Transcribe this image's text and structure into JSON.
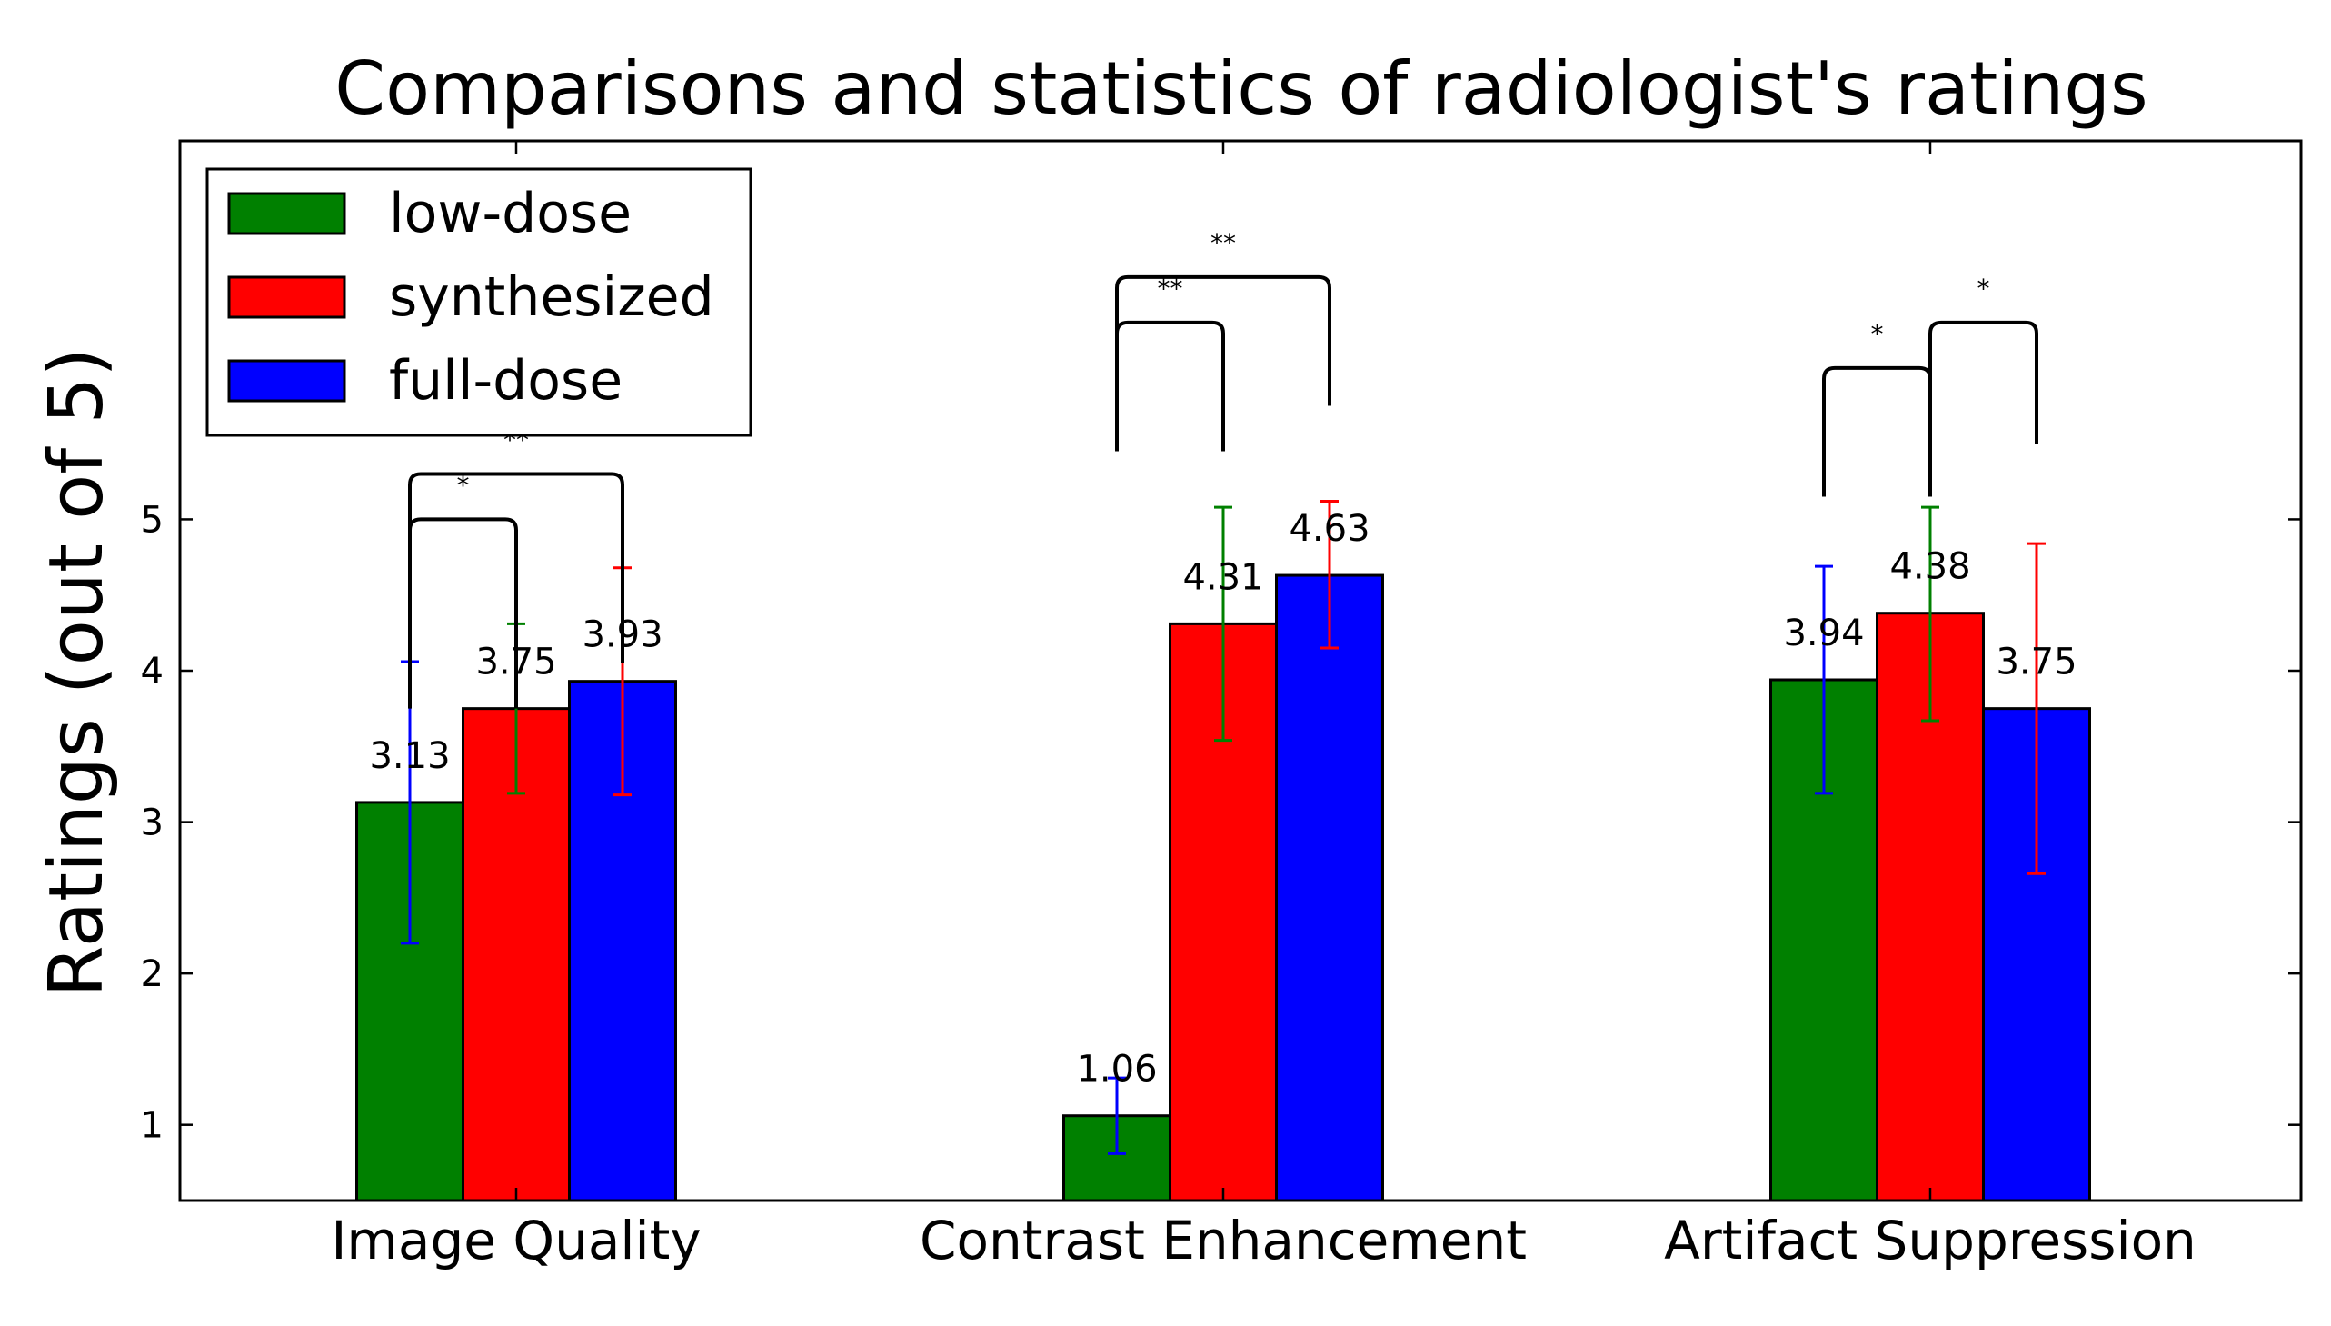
{
  "chart_data": {
    "type": "bar",
    "title": "Comparisons and statistics of radiologist's ratings",
    "xlabel": "",
    "ylabel": "Ratings (out of 5)",
    "ylim": [
      0.5,
      7.5
    ],
    "yticks": [
      1,
      2,
      3,
      4,
      5
    ],
    "grid": false,
    "legend_position": "top-left",
    "categories": [
      "Image Quality",
      "Contrast Enhancement",
      "Artifact Suppression"
    ],
    "series": [
      {
        "name": "low-dose",
        "color": "#008000",
        "values": [
          3.13,
          1.06,
          3.94
        ]
      },
      {
        "name": "synthesized",
        "color": "#ff0000",
        "values": [
          3.75,
          4.31,
          4.38
        ]
      },
      {
        "name": "full-dose",
        "color": "#0000ff",
        "values": [
          3.93,
          4.63,
          3.75
        ]
      }
    ],
    "value_labels": [
      [
        "3.13",
        "3.75",
        "3.93"
      ],
      [
        "1.06",
        "4.31",
        "4.63"
      ],
      [
        "3.94",
        "4.38",
        "3.75"
      ]
    ],
    "error_bars": [
      [
        {
          "low": 2.2,
          "high": 4.06,
          "color": "#0000ff"
        },
        {
          "low": 3.19,
          "high": 4.31,
          "color": "#008000"
        },
        {
          "low": 3.18,
          "high": 4.68,
          "color": "#ff0000"
        }
      ],
      [
        {
          "low": 0.81,
          "high": 1.31,
          "color": "#0000ff"
        },
        {
          "low": 3.54,
          "high": 5.08,
          "color": "#008000"
        },
        {
          "low": 4.15,
          "high": 5.12,
          "color": "#ff0000"
        }
      ],
      [
        {
          "low": 3.19,
          "high": 4.69,
          "color": "#0000ff"
        },
        {
          "low": 3.67,
          "high": 5.08,
          "color": "#008000"
        },
        {
          "low": 2.66,
          "high": 4.84,
          "color": "#ff0000"
        }
      ]
    ],
    "significance": [
      {
        "category": 0,
        "from": 0,
        "to": 1,
        "label": "*",
        "level": 5.0,
        "top": 3.75
      },
      {
        "category": 0,
        "from": 0,
        "to": 2,
        "label": "**",
        "level": 5.3,
        "top": 4.05
      },
      {
        "category": 1,
        "from": 0,
        "to": 1,
        "label": "**",
        "level": 6.3,
        "top": 5.45
      },
      {
        "category": 1,
        "from": 0,
        "to": 2,
        "label": "**",
        "level": 6.6,
        "top": 5.75
      },
      {
        "category": 2,
        "from": 0,
        "to": 1,
        "label": "*",
        "level": 6.0,
        "top": 5.15
      },
      {
        "category": 2,
        "from": 1,
        "to": 2,
        "label": "*",
        "level": 6.3,
        "top": 5.5
      }
    ]
  }
}
